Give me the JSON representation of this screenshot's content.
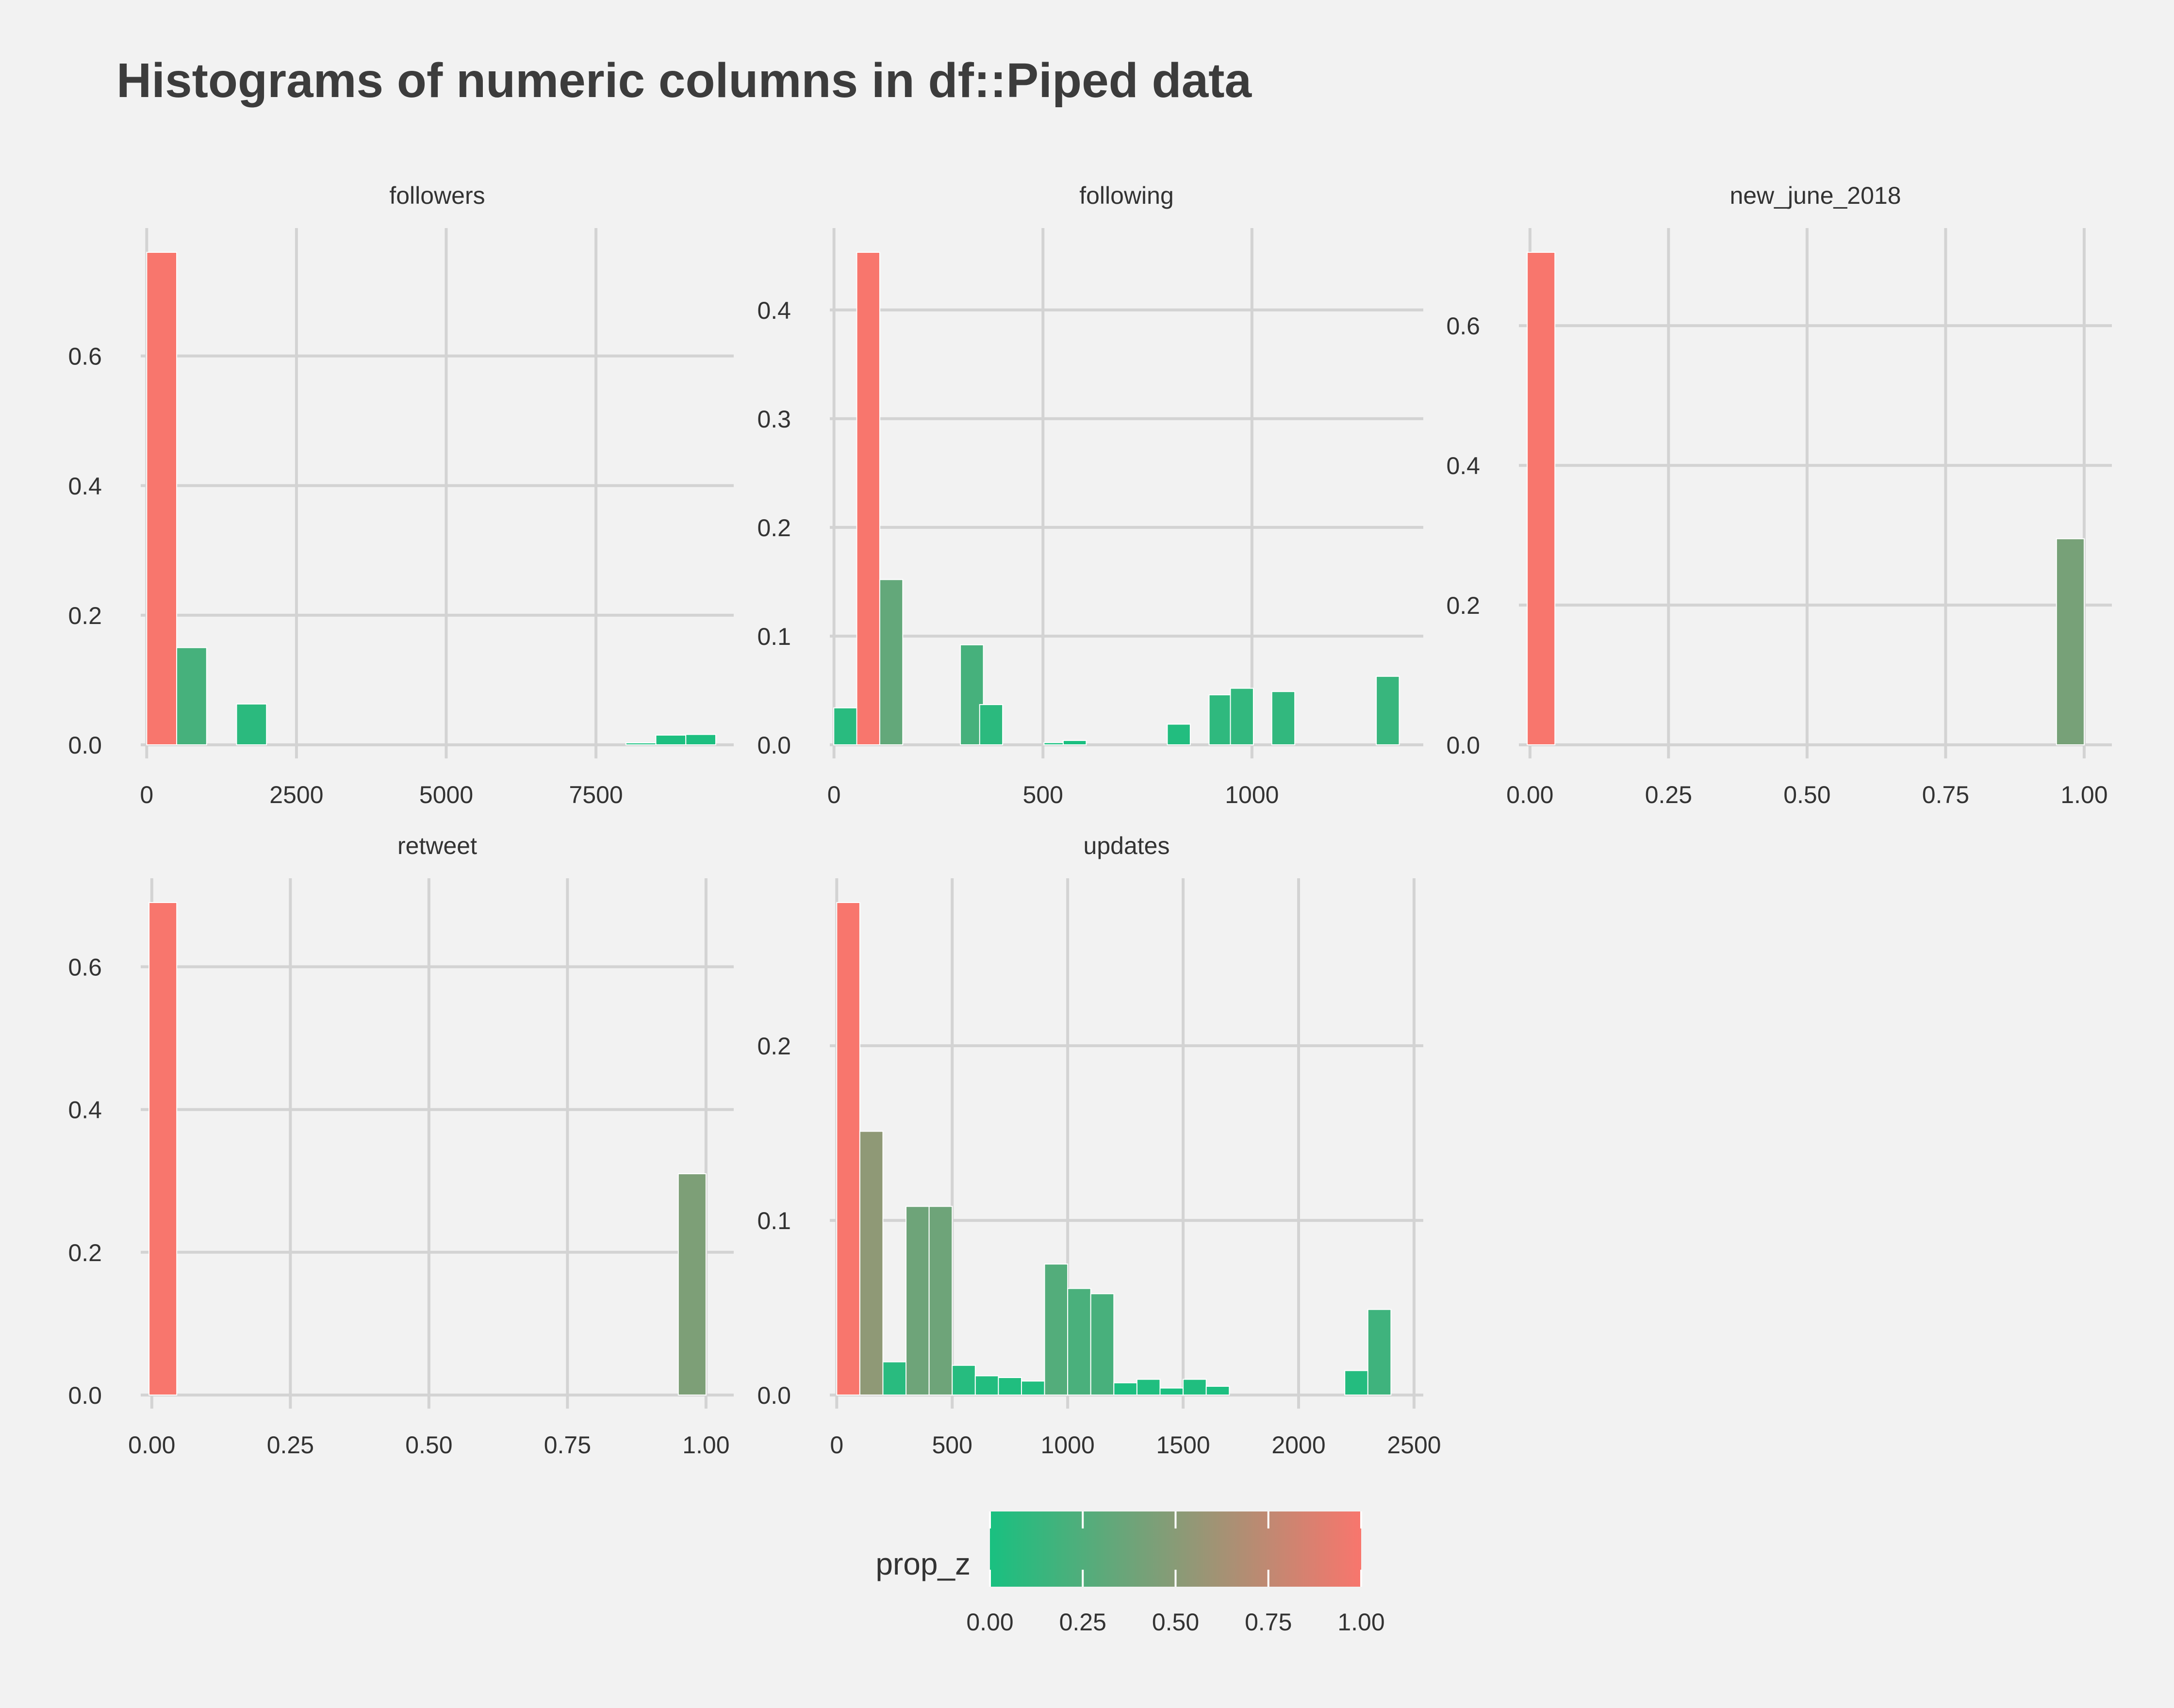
{
  "chart_data": {
    "type": "bar",
    "title": "Histograms of numeric columns in df::Piped data",
    "facets": [
      {
        "name": "followers",
        "xlim": [
          -100,
          9800
        ],
        "ylim": [
          0,
          0.76
        ],
        "xticks": [
          0,
          2500,
          5000,
          7500
        ],
        "xtick_labels": [
          "0",
          "2500",
          "5000",
          "7500"
        ],
        "yticks": [
          0,
          0.2,
          0.4,
          0.6
        ],
        "ytick_labels": [
          "0.0",
          "0.2",
          "0.4",
          "0.6"
        ],
        "bin_width": 500,
        "bars": [
          {
            "x": 250,
            "y": 0.76,
            "prop_z": 1.0
          },
          {
            "x": 750,
            "y": 0.15,
            "prop_z": 0.2
          },
          {
            "x": 1750,
            "y": 0.063,
            "prop_z": 0.08
          },
          {
            "x": 8250,
            "y": 0.003,
            "prop_z": 0.0
          },
          {
            "x": 8750,
            "y": 0.015,
            "prop_z": 0.02
          },
          {
            "x": 9250,
            "y": 0.016,
            "prop_z": 0.02
          }
        ]
      },
      {
        "name": "following",
        "xlim": [
          -10,
          1410
        ],
        "ylim": [
          0,
          0.453
        ],
        "xticks": [
          0,
          500,
          1000
        ],
        "xtick_labels": [
          "0",
          "500",
          "1000"
        ],
        "yticks": [
          0,
          0.1,
          0.2,
          0.3,
          0.4
        ],
        "ytick_labels": [
          "0.0",
          "0.1",
          "0.2",
          "0.3",
          "0.4"
        ],
        "bin_width": 55,
        "bars": [
          {
            "x": 27,
            "y": 0.034,
            "prop_z": 0.07
          },
          {
            "x": 82,
            "y": 0.453,
            "prop_z": 1.0
          },
          {
            "x": 137,
            "y": 0.152,
            "prop_z": 0.33
          },
          {
            "x": 330,
            "y": 0.092,
            "prop_z": 0.2
          },
          {
            "x": 376,
            "y": 0.037,
            "prop_z": 0.08
          },
          {
            "x": 530,
            "y": 0.002,
            "prop_z": 0.0
          },
          {
            "x": 576,
            "y": 0.004,
            "prop_z": 0.01
          },
          {
            "x": 825,
            "y": 0.019,
            "prop_z": 0.04
          },
          {
            "x": 925,
            "y": 0.046,
            "prop_z": 0.1
          },
          {
            "x": 976,
            "y": 0.052,
            "prop_z": 0.11
          },
          {
            "x": 1075,
            "y": 0.049,
            "prop_z": 0.11
          },
          {
            "x": 1325,
            "y": 0.063,
            "prop_z": 0.14
          }
        ]
      },
      {
        "name": "new_june_2018",
        "xlim": [
          -0.02,
          1.05
        ],
        "ylim": [
          0,
          0.705
        ],
        "xticks": [
          0,
          0.25,
          0.5,
          0.75,
          1.0
        ],
        "xtick_labels": [
          "0.00",
          "0.25",
          "0.50",
          "0.75",
          "1.00"
        ],
        "yticks": [
          0,
          0.2,
          0.4,
          0.6
        ],
        "ytick_labels": [
          "0.0",
          "0.2",
          "0.4",
          "0.6"
        ],
        "bin_width": 0.05,
        "bars": [
          {
            "x": 0.02,
            "y": 0.705,
            "prop_z": 1.0
          },
          {
            "x": 0.975,
            "y": 0.295,
            "prop_z": 0.42
          }
        ]
      },
      {
        "name": "retweet",
        "xlim": [
          -0.02,
          1.05
        ],
        "ylim": [
          0,
          0.69
        ],
        "xticks": [
          0,
          0.25,
          0.5,
          0.75,
          1.0
        ],
        "xtick_labels": [
          "0.00",
          "0.25",
          "0.50",
          "0.75",
          "1.00"
        ],
        "yticks": [
          0,
          0.2,
          0.4,
          0.6
        ],
        "ytick_labels": [
          "0.0",
          "0.2",
          "0.4",
          "0.6"
        ],
        "bin_width": 0.05,
        "bars": [
          {
            "x": 0.02,
            "y": 0.69,
            "prop_z": 1.0
          },
          {
            "x": 0.975,
            "y": 0.31,
            "prop_z": 0.45
          }
        ]
      },
      {
        "name": "updates",
        "xlim": [
          -30,
          2540
        ],
        "ylim": [
          0,
          0.282
        ],
        "xticks": [
          0,
          500,
          1000,
          1500,
          2000,
          2500
        ],
        "xtick_labels": [
          "0",
          "500",
          "1000",
          "1500",
          "2000",
          "2500"
        ],
        "yticks": [
          0,
          0.1,
          0.2
        ],
        "ytick_labels": [
          "0.0",
          "0.1",
          "0.2"
        ],
        "bin_width": 100,
        "bars": [
          {
            "x": 50,
            "y": 0.282,
            "prop_z": 1.0
          },
          {
            "x": 150,
            "y": 0.151,
            "prop_z": 0.53
          },
          {
            "x": 250,
            "y": 0.019,
            "prop_z": 0.07
          },
          {
            "x": 350,
            "y": 0.108,
            "prop_z": 0.38
          },
          {
            "x": 450,
            "y": 0.108,
            "prop_z": 0.38
          },
          {
            "x": 550,
            "y": 0.017,
            "prop_z": 0.06
          },
          {
            "x": 650,
            "y": 0.011,
            "prop_z": 0.04
          },
          {
            "x": 750,
            "y": 0.01,
            "prop_z": 0.03
          },
          {
            "x": 850,
            "y": 0.008,
            "prop_z": 0.03
          },
          {
            "x": 950,
            "y": 0.075,
            "prop_z": 0.26
          },
          {
            "x": 1050,
            "y": 0.061,
            "prop_z": 0.22
          },
          {
            "x": 1150,
            "y": 0.058,
            "prop_z": 0.21
          },
          {
            "x": 1250,
            "y": 0.007,
            "prop_z": 0.02
          },
          {
            "x": 1350,
            "y": 0.009,
            "prop_z": 0.03
          },
          {
            "x": 1450,
            "y": 0.004,
            "prop_z": 0.01
          },
          {
            "x": 1550,
            "y": 0.009,
            "prop_z": 0.03
          },
          {
            "x": 1650,
            "y": 0.005,
            "prop_z": 0.02
          },
          {
            "x": 2250,
            "y": 0.014,
            "prop_z": 0.05
          },
          {
            "x": 2350,
            "y": 0.049,
            "prop_z": 0.17
          }
        ]
      }
    ],
    "legend": {
      "title": "prop_z",
      "position": "bottom",
      "low_color": "#19c080",
      "high_color": "#f8766d",
      "ticks": [
        0,
        0.25,
        0.5,
        0.75,
        1.0
      ],
      "tick_labels": [
        "0.00",
        "0.25",
        "0.50",
        "0.75",
        "1.00"
      ]
    },
    "grid": true
  }
}
